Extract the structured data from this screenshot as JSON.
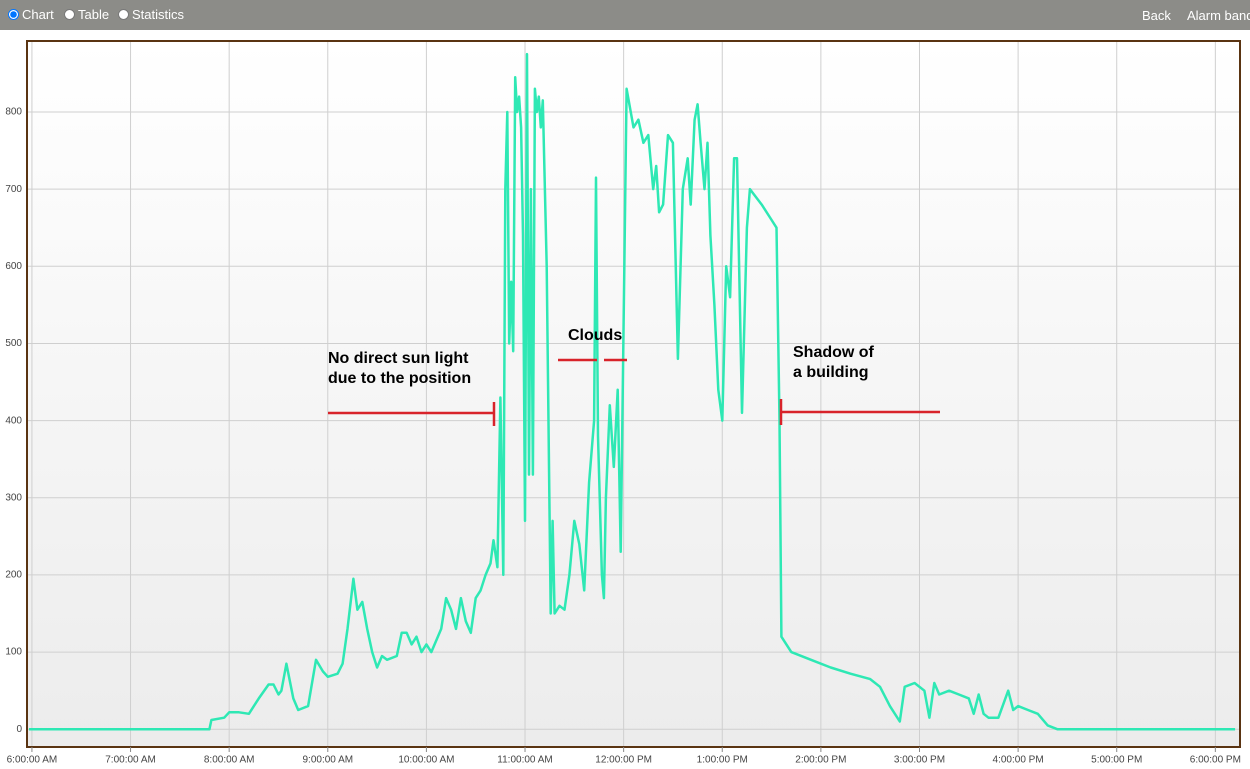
{
  "toolbar": {
    "options": [
      "Chart",
      "Table",
      "Statistics"
    ],
    "links": [
      "Back",
      "Alarm band"
    ]
  },
  "chart_data": {
    "type": "line",
    "xlim": [
      5.95,
      18.25
    ],
    "ylim": [
      -23,
      892
    ],
    "xticks": [
      {
        "value": 6,
        "label": "6:00:00 AM"
      },
      {
        "value": 7,
        "label": "7:00:00 AM"
      },
      {
        "value": 8,
        "label": "8:00:00 AM"
      },
      {
        "value": 9,
        "label": "9:00:00 AM"
      },
      {
        "value": 10,
        "label": "10:00:00 AM"
      },
      {
        "value": 11,
        "label": "11:00:00 AM"
      },
      {
        "value": 12,
        "label": "12:00:00 PM"
      },
      {
        "value": 13,
        "label": "1:00:00 PM"
      },
      {
        "value": 14,
        "label": "2:00:00 PM"
      },
      {
        "value": 15,
        "label": "3:00:00 PM"
      },
      {
        "value": 16,
        "label": "4:00:00 PM"
      },
      {
        "value": 17,
        "label": "5:00:00 PM"
      },
      {
        "value": 18,
        "label": "6:00:00 PM"
      }
    ],
    "yticks": [
      0,
      100,
      200,
      300,
      400,
      500,
      600,
      700,
      800
    ],
    "grid": true,
    "annotations": [
      [
        "No direct sun light",
        "due to the position"
      ],
      [
        "Clouds"
      ],
      [
        "Shadow of",
        "a building"
      ]
    ],
    "series": [
      {
        "color": "#2ee8b4",
        "x": [
          5.97,
          7.8,
          7.82,
          7.95,
          8.0,
          8.1,
          8.2,
          8.3,
          8.4,
          8.45,
          8.5,
          8.53,
          8.58,
          8.65,
          8.7,
          8.8,
          8.88,
          8.95,
          9.0,
          9.1,
          9.15,
          9.2,
          9.26,
          9.3,
          9.35,
          9.4,
          9.45,
          9.5,
          9.55,
          9.6,
          9.7,
          9.75,
          9.8,
          9.85,
          9.9,
          9.95,
          10.0,
          10.05,
          10.15,
          10.2,
          10.25,
          10.3,
          10.35,
          10.4,
          10.45,
          10.5,
          10.55,
          10.6,
          10.65,
          10.68,
          10.72,
          10.75,
          10.78,
          10.8,
          10.82,
          10.84,
          10.86,
          10.88,
          10.9,
          10.92,
          10.94,
          10.96,
          10.98,
          11.0,
          11.02,
          11.04,
          11.06,
          11.08,
          11.1,
          11.12,
          11.14,
          11.16,
          11.18,
          11.22,
          11.26,
          11.28,
          11.3,
          11.35,
          11.4,
          11.45,
          11.5,
          11.55,
          11.6,
          11.65,
          11.7,
          11.72,
          11.74,
          11.78,
          11.8,
          11.82,
          11.86,
          11.9,
          11.94,
          11.97,
          12.03,
          12.1,
          12.15,
          12.2,
          12.25,
          12.3,
          12.33,
          12.36,
          12.4,
          12.45,
          12.5,
          12.55,
          12.6,
          12.65,
          12.68,
          12.72,
          12.75,
          12.78,
          12.82,
          12.85,
          12.88,
          12.92,
          12.96,
          13.0,
          13.04,
          13.08,
          13.12,
          13.15,
          13.2,
          13.25,
          13.28,
          13.4,
          13.5,
          13.55,
          13.58,
          13.6,
          13.7,
          13.9,
          14.1,
          14.3,
          14.5,
          14.6,
          14.7,
          14.8,
          14.85,
          14.95,
          15.05,
          15.1,
          15.15,
          15.2,
          15.3,
          15.4,
          15.5,
          15.55,
          15.6,
          15.65,
          15.7,
          15.8,
          15.9,
          15.95,
          16.0,
          16.1,
          16.2,
          16.3,
          16.4,
          18.2
        ],
        "values": [
          0,
          0,
          12,
          15,
          22,
          22,
          20,
          40,
          58,
          58,
          45,
          50,
          85,
          40,
          25,
          30,
          90,
          75,
          68,
          72,
          85,
          130,
          195,
          155,
          165,
          130,
          100,
          80,
          95,
          90,
          95,
          125,
          125,
          110,
          120,
          100,
          110,
          100,
          130,
          170,
          155,
          130,
          170,
          140,
          125,
          170,
          180,
          200,
          215,
          245,
          210,
          430,
          200,
          700,
          800,
          500,
          580,
          490,
          845,
          800,
          820,
          780,
          640,
          270,
          875,
          330,
          700,
          330,
          830,
          800,
          820,
          780,
          815,
          600,
          150,
          270,
          150,
          160,
          155,
          200,
          270,
          240,
          180,
          320,
          400,
          715,
          380,
          200,
          170,
          300,
          420,
          340,
          440,
          230,
          830,
          780,
          790,
          760,
          770,
          700,
          730,
          670,
          680,
          770,
          760,
          480,
          700,
          740,
          680,
          790,
          810,
          760,
          700,
          760,
          640,
          550,
          440,
          400,
          600,
          560,
          740,
          740,
          410,
          650,
          700,
          680,
          660,
          650,
          400,
          120,
          100,
          90,
          80,
          72,
          65,
          55,
          30,
          10,
          55,
          60,
          50,
          15,
          60,
          45,
          50,
          45,
          40,
          20,
          45,
          20,
          15,
          15,
          50,
          25,
          30,
          25,
          20,
          5,
          0,
          0
        ]
      }
    ]
  }
}
